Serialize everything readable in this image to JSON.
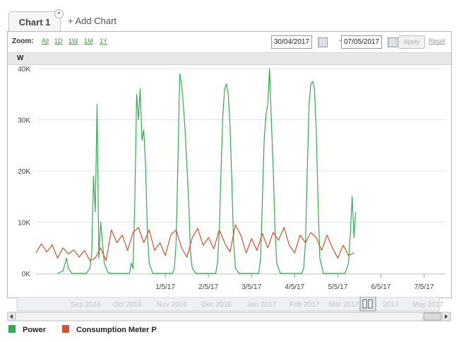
{
  "tabs": [
    {
      "label": "Chart 1",
      "close": "×"
    }
  ],
  "add_chart_label": "+ Add Chart",
  "zoom": {
    "label": "Zoom:",
    "options": [
      "All",
      "1D",
      "1W",
      "1M",
      "1Y"
    ]
  },
  "date_from": "30/04/2017",
  "date_separator": "-",
  "date_to": "07/05/2017",
  "apply_label": "Apply",
  "reset_label": "Reset",
  "unit_label": "W",
  "navigator_labels": [
    "Sep 2016",
    "Oct 2016",
    "Nov 2016",
    "Dec 2016",
    "Jan 2017",
    "Feb 2017",
    "Mar 2017",
    "2017",
    "May 2017"
  ],
  "colors": {
    "power": "#2fae4e",
    "consumption": "#d9502f",
    "grid": "#e4e4e4",
    "accent": "#3a9b3a"
  },
  "legend": [
    {
      "name": "Power",
      "color": "#2fae4e"
    },
    {
      "name": "Consumption Meter P",
      "color": "#d9502f"
    }
  ],
  "chart_data": {
    "type": "line",
    "title": "",
    "xlabel": "",
    "ylabel": "W",
    "ylim": [
      0,
      40000
    ],
    "yticks": [
      0,
      10000,
      20000,
      30000,
      40000
    ],
    "ytick_labels": [
      "0K",
      "10K",
      "20K",
      "30K",
      "40K"
    ],
    "xlim": [
      "2017-04-28T00:00",
      "2017-05-07T12:00"
    ],
    "xticks": [
      "2017-05-01",
      "2017-05-02",
      "2017-05-03",
      "2017-05-04",
      "2017-05-05",
      "2017-05-06",
      "2017-05-07"
    ],
    "xtick_labels": [
      "1/5/17",
      "2/5/17",
      "3/5/17",
      "4/5/17",
      "5/5/17",
      "6/5/17",
      "7/5/17"
    ],
    "grid": true,
    "legend_position": "bottom-left",
    "series": [
      {
        "name": "Power",
        "color": "#2fae4e",
        "points": [
          [
            "2017-04-28T12:00",
            0
          ],
          [
            "2017-04-28T15:00",
            500
          ],
          [
            "2017-04-28T17:00",
            3000
          ],
          [
            "2017-04-28T18:00",
            1000
          ],
          [
            "2017-04-28T20:00",
            0
          ],
          [
            "2017-04-29T04:00",
            0
          ],
          [
            "2017-04-29T06:00",
            1000
          ],
          [
            "2017-04-29T07:00",
            4000
          ],
          [
            "2017-04-29T08:00",
            19000
          ],
          [
            "2017-04-29T09:00",
            12000
          ],
          [
            "2017-04-29T10:00",
            33000
          ],
          [
            "2017-04-29T11:00",
            3000
          ],
          [
            "2017-04-29T12:00",
            10000
          ],
          [
            "2017-04-29T13:00",
            6000
          ],
          [
            "2017-04-29T14:00",
            2000
          ],
          [
            "2017-04-29T16:00",
            200
          ],
          [
            "2017-04-29T18:00",
            0
          ],
          [
            "2017-04-30T04:00",
            0
          ],
          [
            "2017-04-30T05:00",
            2000
          ],
          [
            "2017-04-30T06:00",
            1000
          ],
          [
            "2017-04-30T07:00",
            14000
          ],
          [
            "2017-04-30T08:00",
            35000
          ],
          [
            "2017-04-30T09:00",
            30000
          ],
          [
            "2017-04-30T10:00",
            36000
          ],
          [
            "2017-04-30T11:00",
            26000
          ],
          [
            "2017-04-30T12:00",
            28000
          ],
          [
            "2017-04-30T13:00",
            21000
          ],
          [
            "2017-04-30T14:00",
            8000
          ],
          [
            "2017-04-30T15:00",
            2000
          ],
          [
            "2017-04-30T17:00",
            0
          ],
          [
            "2017-05-01T04:00",
            0
          ],
          [
            "2017-05-01T05:00",
            1000
          ],
          [
            "2017-05-01T06:00",
            6000
          ],
          [
            "2017-05-01T07:00",
            22000
          ],
          [
            "2017-05-01T08:00",
            39000
          ],
          [
            "2017-05-01T09:00",
            37000
          ],
          [
            "2017-05-01T10:00",
            33000
          ],
          [
            "2017-05-01T11:00",
            28000
          ],
          [
            "2017-05-01T12:00",
            21000
          ],
          [
            "2017-05-01T13:00",
            14000
          ],
          [
            "2017-05-01T14:00",
            4000
          ],
          [
            "2017-05-01T15:00",
            1000
          ],
          [
            "2017-05-01T17:00",
            0
          ],
          [
            "2017-05-02T04:00",
            0
          ],
          [
            "2017-05-02T05:00",
            2000
          ],
          [
            "2017-05-02T06:00",
            8000
          ],
          [
            "2017-05-02T07:00",
            20000
          ],
          [
            "2017-05-02T08:00",
            31000
          ],
          [
            "2017-05-02T09:00",
            36000
          ],
          [
            "2017-05-02T10:00",
            37000
          ],
          [
            "2017-05-02T11:00",
            35000
          ],
          [
            "2017-05-02T12:00",
            29000
          ],
          [
            "2017-05-02T13:00",
            18000
          ],
          [
            "2017-05-02T14:00",
            6000
          ],
          [
            "2017-05-02T15:00",
            1000
          ],
          [
            "2017-05-02T17:00",
            0
          ],
          [
            "2017-05-03T04:00",
            0
          ],
          [
            "2017-05-03T05:00",
            3000
          ],
          [
            "2017-05-03T06:00",
            14000
          ],
          [
            "2017-05-03T07:00",
            26000
          ],
          [
            "2017-05-03T08:00",
            31000
          ],
          [
            "2017-05-03T09:00",
            33000
          ],
          [
            "2017-05-03T10:00",
            40000
          ],
          [
            "2017-05-03T11:00",
            30000
          ],
          [
            "2017-05-03T12:00",
            21000
          ],
          [
            "2017-05-03T13:00",
            9000
          ],
          [
            "2017-05-03T14:00",
            2000
          ],
          [
            "2017-05-03T16:00",
            0
          ],
          [
            "2017-05-04T04:00",
            0
          ],
          [
            "2017-05-04T05:00",
            1000
          ],
          [
            "2017-05-04T06:00",
            6000
          ],
          [
            "2017-05-04T07:00",
            20000
          ],
          [
            "2017-05-04T08:00",
            33000
          ],
          [
            "2017-05-04T09:00",
            37000
          ],
          [
            "2017-05-04T10:00",
            37500
          ],
          [
            "2017-05-04T11:00",
            36000
          ],
          [
            "2017-05-04T12:00",
            28000
          ],
          [
            "2017-05-04T13:00",
            14000
          ],
          [
            "2017-05-04T14:00",
            3000
          ],
          [
            "2017-05-04T16:00",
            0
          ],
          [
            "2017-05-05T04:00",
            0
          ],
          [
            "2017-05-05T06:00",
            2000
          ],
          [
            "2017-05-05T07:00",
            8000
          ],
          [
            "2017-05-05T08:00",
            15000
          ],
          [
            "2017-05-05T09:00",
            7000
          ],
          [
            "2017-05-05T10:00",
            12000
          ]
        ]
      },
      {
        "name": "Consumption Meter P",
        "color": "#d9502f",
        "points": [
          [
            "2017-04-28T00:00",
            4000
          ],
          [
            "2017-04-28T03:00",
            5800
          ],
          [
            "2017-04-28T06:00",
            4200
          ],
          [
            "2017-04-28T09:00",
            5600
          ],
          [
            "2017-04-28T12:00",
            3000
          ],
          [
            "2017-04-28T15:00",
            5000
          ],
          [
            "2017-04-28T18:00",
            3800
          ],
          [
            "2017-04-28T21:00",
            4600
          ],
          [
            "2017-04-29T00:00",
            3200
          ],
          [
            "2017-04-29T03:00",
            4500
          ],
          [
            "2017-04-29T06:00",
            2500
          ],
          [
            "2017-04-29T09:00",
            3000
          ],
          [
            "2017-04-29T12:00",
            5000
          ],
          [
            "2017-04-29T15:00",
            2500
          ],
          [
            "2017-04-29T18:00",
            8500
          ],
          [
            "2017-04-29T21:00",
            6000
          ],
          [
            "2017-04-30T00:00",
            7500
          ],
          [
            "2017-04-30T03:00",
            4500
          ],
          [
            "2017-04-30T06:00",
            8000
          ],
          [
            "2017-04-30T09:00",
            9000
          ],
          [
            "2017-04-30T12:00",
            6000
          ],
          [
            "2017-04-30T15:00",
            8500
          ],
          [
            "2017-04-30T18:00",
            4500
          ],
          [
            "2017-04-30T21:00",
            6000
          ],
          [
            "2017-05-01T00:00",
            3500
          ],
          [
            "2017-05-01T03:00",
            7500
          ],
          [
            "2017-05-01T06:00",
            8500
          ],
          [
            "2017-05-01T09:00",
            5000
          ],
          [
            "2017-05-01T12:00",
            3200
          ],
          [
            "2017-05-01T15:00",
            7000
          ],
          [
            "2017-05-01T18:00",
            8800
          ],
          [
            "2017-05-01T21:00",
            5500
          ],
          [
            "2017-05-02T00:00",
            7000
          ],
          [
            "2017-05-02T03:00",
            4800
          ],
          [
            "2017-05-02T06:00",
            8500
          ],
          [
            "2017-05-02T09:00",
            6000
          ],
          [
            "2017-05-02T12:00",
            4200
          ],
          [
            "2017-05-02T15:00",
            9500
          ],
          [
            "2017-05-02T18:00",
            7500
          ],
          [
            "2017-05-02T21:00",
            4000
          ],
          [
            "2017-05-03T00:00",
            6800
          ],
          [
            "2017-05-03T03:00",
            4500
          ],
          [
            "2017-05-03T06:00",
            7800
          ],
          [
            "2017-05-03T09:00",
            5000
          ],
          [
            "2017-05-03T12:00",
            8000
          ],
          [
            "2017-05-03T15:00",
            6500
          ],
          [
            "2017-05-03T18:00",
            9000
          ],
          [
            "2017-05-03T21:00",
            5500
          ],
          [
            "2017-05-04T00:00",
            4000
          ],
          [
            "2017-05-04T03:00",
            7500
          ],
          [
            "2017-05-04T06:00",
            6000
          ],
          [
            "2017-05-04T09:00",
            8000
          ],
          [
            "2017-05-04T12:00",
            7000
          ],
          [
            "2017-05-04T15:00",
            4500
          ],
          [
            "2017-05-04T18:00",
            7500
          ],
          [
            "2017-05-04T21:00",
            5000
          ],
          [
            "2017-05-05T00:00",
            3000
          ],
          [
            "2017-05-05T03:00",
            5500
          ],
          [
            "2017-05-05T06:00",
            3500
          ],
          [
            "2017-05-05T09:00",
            4000
          ]
        ]
      }
    ]
  }
}
